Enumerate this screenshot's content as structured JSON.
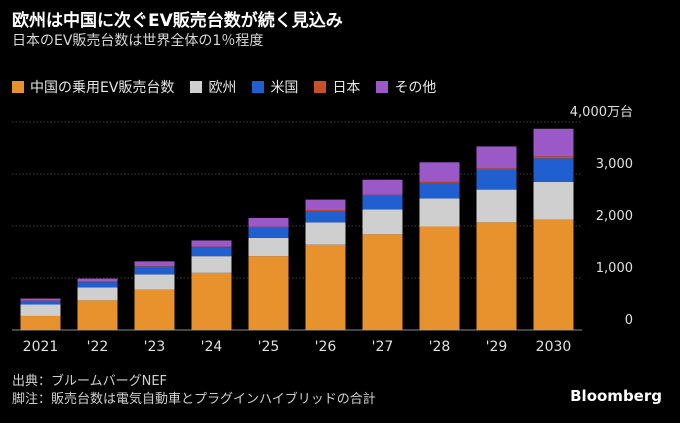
{
  "header": {
    "title": "欧州は中国に次ぐEV販売台数が続く見込み",
    "subtitle": "日本のEV販売台数は世界全体の1％程度"
  },
  "legend": [
    {
      "label": "中国の乗用EV販売台数",
      "color": "#e8922d"
    },
    {
      "label": "欧州",
      "color": "#cfcfcf"
    },
    {
      "label": "米国",
      "color": "#1f5fcf"
    },
    {
      "label": "日本",
      "color": "#c8502a"
    },
    {
      "label": "その他",
      "color": "#9b59c7"
    }
  ],
  "chart_data": {
    "type": "bar",
    "stacked": true,
    "categories": [
      "2021",
      "'22",
      "'23",
      "'24",
      "'25",
      "'26",
      "'27",
      "'28",
      "'29",
      "2030"
    ],
    "series": [
      {
        "name": "中国の乗用EV販売台数",
        "color": "#e8922d",
        "values": [
          270,
          570,
          780,
          1100,
          1420,
          1640,
          1840,
          1990,
          2070,
          2120
        ]
      },
      {
        "name": "欧州",
        "color": "#cfcfcf",
        "values": [
          220,
          250,
          290,
          320,
          350,
          430,
          480,
          540,
          630,
          730
        ]
      },
      {
        "name": "米国",
        "color": "#1f5fcf",
        "values": [
          70,
          100,
          150,
          170,
          200,
          220,
          260,
          300,
          380,
          450
        ]
      },
      {
        "name": "日本",
        "color": "#c8502a",
        "values": [
          5,
          8,
          10,
          12,
          15,
          18,
          20,
          25,
          30,
          40
        ]
      },
      {
        "name": "その他",
        "color": "#9b59c7",
        "values": [
          40,
          60,
          90,
          120,
          170,
          200,
          290,
          370,
          420,
          530
        ]
      }
    ],
    "ylim": [
      0,
      4000
    ],
    "yticks": [
      {
        "value": 0,
        "label": "0"
      },
      {
        "value": 1000,
        "label": "1,000"
      },
      {
        "value": 2000,
        "label": "2,000"
      },
      {
        "value": 3000,
        "label": "3,000"
      },
      {
        "value": 4000,
        "label": "4,000万台"
      }
    ],
    "grid": true,
    "legend_position": "top-left"
  },
  "footer": {
    "source": "出典：ブルームバーグNEF",
    "note": "脚注：販売台数は電気自動車とプラグインハイブリッドの合計"
  },
  "brand": "Bloomberg"
}
